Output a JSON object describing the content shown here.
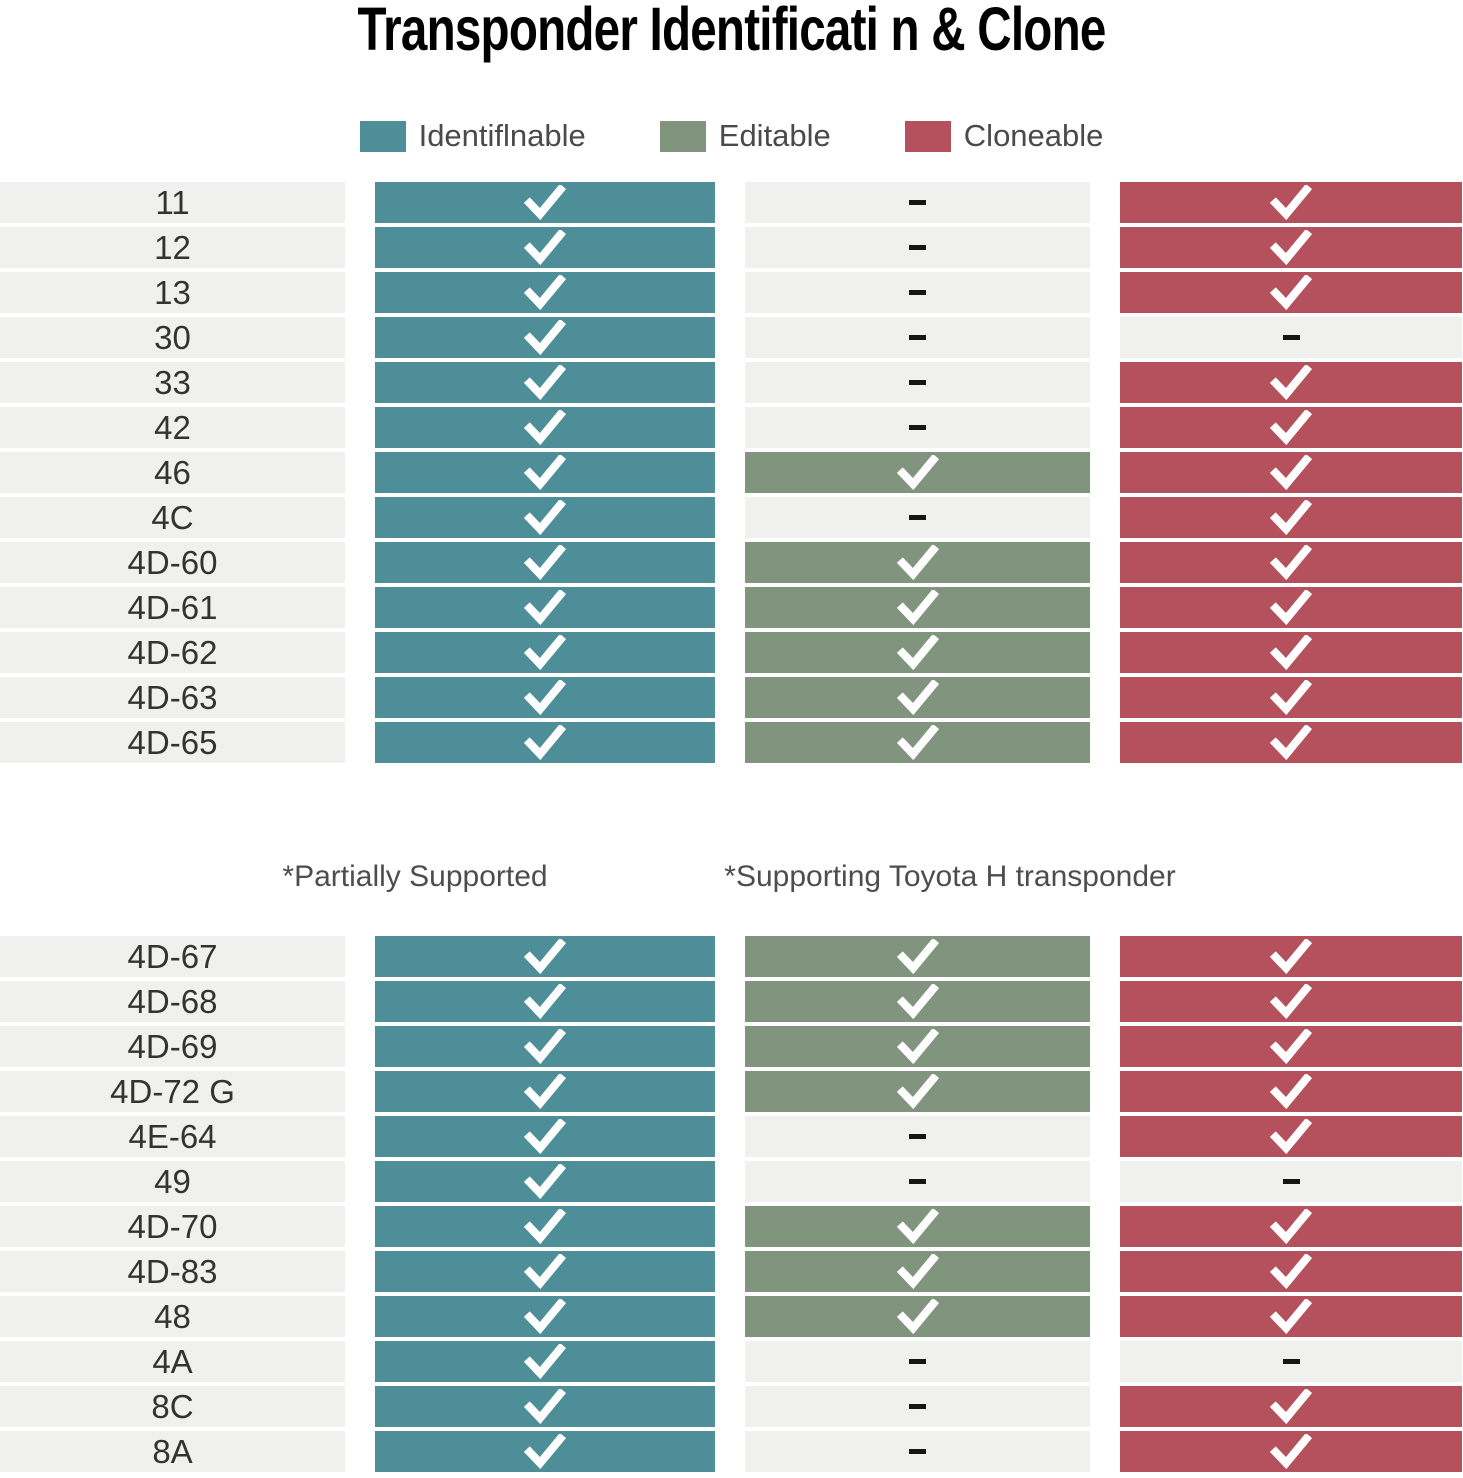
{
  "title": "Transponder Identificati n & Clone",
  "colors": {
    "identifiable": "#4e8e99",
    "editable": "#80947e",
    "cloneable": "#b4515c",
    "empty_cell": "#f0f0ef",
    "label_cell": "#f0f0ef"
  },
  "legend": [
    {
      "key": "identifiable",
      "label": "Identiflnable"
    },
    {
      "key": "editable",
      "label": "Editable"
    },
    {
      "key": "cloneable",
      "label": "Cloneable"
    }
  ],
  "notes": [
    "*Partially Supported",
    "*Supporting Toyota H transponder"
  ],
  "chart_data": {
    "type": "table",
    "title": "Transponder Identificati n & Clone",
    "columns": [
      "Transponder",
      "Identiflnable",
      "Editable",
      "Cloneable"
    ],
    "cell_symbols": {
      "check": "supported",
      "dash": "not-supported"
    },
    "tables": [
      {
        "name": "table-1",
        "rows": [
          {
            "label": "11",
            "cells": [
              "check",
              "dash",
              "check"
            ]
          },
          {
            "label": "12",
            "cells": [
              "check",
              "dash",
              "check"
            ]
          },
          {
            "label": "13",
            "cells": [
              "check",
              "dash",
              "check"
            ]
          },
          {
            "label": "30",
            "cells": [
              "check",
              "dash",
              "dash"
            ]
          },
          {
            "label": "33",
            "cells": [
              "check",
              "dash",
              "check"
            ]
          },
          {
            "label": "42",
            "cells": [
              "check",
              "dash",
              "check"
            ]
          },
          {
            "label": "46",
            "cells": [
              "check",
              "check",
              "check"
            ]
          },
          {
            "label": "4C",
            "cells": [
              "check",
              "dash",
              "check"
            ]
          },
          {
            "label": "4D-60",
            "cells": [
              "check",
              "check",
              "check"
            ]
          },
          {
            "label": "4D-61",
            "cells": [
              "check",
              "check",
              "check"
            ]
          },
          {
            "label": "4D-62",
            "cells": [
              "check",
              "check",
              "check"
            ]
          },
          {
            "label": "4D-63",
            "cells": [
              "check",
              "check",
              "check"
            ]
          },
          {
            "label": "4D-65",
            "cells": [
              "check",
              "check",
              "check"
            ]
          }
        ]
      },
      {
        "name": "table-2",
        "rows": [
          {
            "label": "4D-67",
            "cells": [
              "check",
              "check",
              "check"
            ]
          },
          {
            "label": "4D-68",
            "cells": [
              "check",
              "check",
              "check"
            ]
          },
          {
            "label": "4D-69",
            "cells": [
              "check",
              "check",
              "check"
            ]
          },
          {
            "label": "4D-72 G",
            "cells": [
              "check",
              "check",
              "check"
            ]
          },
          {
            "label": "4E-64",
            "cells": [
              "check",
              "dash",
              "check"
            ]
          },
          {
            "label": "49",
            "cells": [
              "check",
              "dash",
              "dash"
            ]
          },
          {
            "label": "4D-70",
            "cells": [
              "check",
              "check",
              "check"
            ]
          },
          {
            "label": "4D-83",
            "cells": [
              "check",
              "check",
              "check"
            ]
          },
          {
            "label": "48",
            "cells": [
              "check",
              "check",
              "check"
            ]
          },
          {
            "label": "4A",
            "cells": [
              "check",
              "dash",
              "dash"
            ]
          },
          {
            "label": "8C",
            "cells": [
              "check",
              "dash",
              "check"
            ]
          },
          {
            "label": "8A",
            "cells": [
              "check",
              "dash",
              "check"
            ]
          }
        ]
      }
    ]
  }
}
